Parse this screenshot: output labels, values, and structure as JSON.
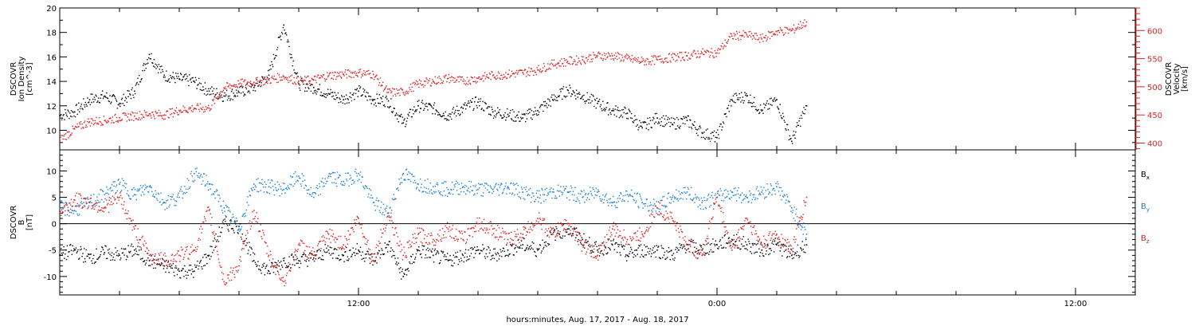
{
  "chart_data": [
    {
      "type": "scatter",
      "panel": "plasma",
      "x_range_hours": [
        2,
        38
      ],
      "xticks_major": [
        12,
        24,
        36
      ],
      "xtick_labels": [
        "12:00",
        "0:00",
        "12:00"
      ],
      "xlabel": "hours:minutes, Aug. 17, 2017 - Aug. 18, 2017",
      "y_left": {
        "label": [
          "DSCOVR",
          "Ion Density",
          "[cm^-3]"
        ],
        "range": [
          8.4,
          20
        ],
        "ticks": [
          10,
          12,
          14,
          16,
          18,
          20
        ]
      },
      "y_right": {
        "label": [
          "DSCOVR",
          "Velocity",
          "[km/s]"
        ],
        "range": [
          388,
          640
        ],
        "ticks": [
          400,
          450,
          500,
          550,
          600
        ]
      },
      "series": [
        {
          "name": "",
          "axis": "left",
          "color": "#000000",
          "x": [
            2,
            2.5,
            3,
            3.5,
            4,
            4.5,
            5,
            5.5,
            6,
            6.5,
            7,
            7.5,
            8,
            8.5,
            9,
            9.5,
            10,
            10.5,
            11,
            11.5,
            12,
            12.5,
            13,
            13.5,
            14,
            14.5,
            15,
            15.5,
            16,
            16.5,
            17,
            17.5,
            18,
            18.5,
            19,
            19.5,
            20,
            20.5,
            21,
            21.5,
            22,
            22.5,
            23,
            23.5,
            24,
            24.5,
            25,
            25.5,
            26,
            26.5,
            27
          ],
          "y": [
            11.2,
            11.5,
            12.5,
            12.8,
            12.2,
            13.2,
            16.2,
            14.5,
            14.2,
            14,
            13.2,
            12.8,
            13.1,
            13.5,
            14.5,
            18.6,
            13.8,
            13.5,
            13,
            12.5,
            13.2,
            12.5,
            12.4,
            10.6,
            12,
            11.8,
            11.2,
            11.8,
            12.3,
            11.5,
            11.3,
            11,
            11.6,
            12.5,
            13.3,
            12.8,
            12.2,
            11.6,
            11.4,
            10.2,
            11,
            10.5,
            10.8,
            9.8,
            9.4,
            12.5,
            12.8,
            11.6,
            12.5,
            9.1,
            12
          ]
        },
        {
          "name": "",
          "axis": "right",
          "color": "#dd2222",
          "x": [
            2,
            2.5,
            3,
            3.5,
            4,
            4.5,
            5,
            5.5,
            6,
            6.5,
            7,
            7.5,
            8,
            8.5,
            9,
            9.5,
            10,
            10.5,
            11,
            11.5,
            12,
            12.5,
            13,
            13.5,
            14,
            14.5,
            15,
            15.5,
            16,
            16.5,
            17,
            17.5,
            18,
            18.5,
            19,
            19.5,
            20,
            20.5,
            21,
            21.5,
            22,
            22.5,
            23,
            23.5,
            24,
            24.5,
            25,
            25.5,
            26,
            26.5,
            27
          ],
          "y": [
            405,
            425,
            438,
            440,
            445,
            448,
            452,
            450,
            458,
            462,
            462,
            498,
            505,
            508,
            512,
            518,
            510,
            512,
            520,
            522,
            525,
            522,
            490,
            490,
            505,
            510,
            515,
            510,
            515,
            520,
            522,
            525,
            530,
            540,
            545,
            548,
            555,
            555,
            550,
            545,
            548,
            552,
            555,
            560,
            560,
            590,
            592,
            585,
            598,
            600,
            615
          ]
        }
      ]
    },
    {
      "type": "scatter",
      "panel": "magnetic-field",
      "x_range_hours": [
        2,
        38
      ],
      "y_left": {
        "label": [
          "DSCOVR",
          "B",
          "[nT]"
        ],
        "range": [
          -13.5,
          14
        ],
        "ticks": [
          -10,
          -5,
          0,
          5,
          10
        ]
      },
      "zero_line": true,
      "series": [
        {
          "name": "Bx",
          "color": "#000000",
          "x": [
            2,
            2.5,
            3,
            3.5,
            4,
            4.5,
            5,
            5.5,
            6,
            6.5,
            7,
            7.5,
            8,
            8.5,
            9,
            9.5,
            10,
            10.5,
            11,
            11.5,
            12,
            12.5,
            13,
            13.5,
            14,
            14.5,
            15,
            15.5,
            16,
            16.5,
            17,
            17.5,
            18,
            18.5,
            19,
            19.5,
            20,
            20.5,
            21,
            21.5,
            22,
            22.5,
            23,
            23.5,
            24,
            24.5,
            25,
            25.5,
            26,
            26.5,
            27
          ],
          "y": [
            -6,
            -5,
            -6.5,
            -5.5,
            -6,
            -5,
            -7,
            -8,
            -9,
            -9,
            -6,
            0,
            -0.5,
            -7,
            -9,
            -7,
            -7,
            -6.5,
            -5,
            -6,
            -5,
            -7,
            -4,
            -10,
            -5,
            -6,
            -7,
            -6,
            -5,
            -6,
            -5,
            -4,
            -5,
            -2,
            -1,
            -3,
            -5,
            -4,
            -6,
            -5,
            -5,
            -6,
            -4,
            -5,
            -4,
            -3,
            -4,
            -5,
            -4,
            -6,
            -4
          ]
        },
        {
          "name": "By",
          "color": "#1a7fd6",
          "x": [
            2,
            2.5,
            3,
            3.5,
            4,
            4.5,
            5,
            5.5,
            6,
            6.5,
            7,
            7.5,
            8,
            8.5,
            9,
            9.5,
            10,
            10.5,
            11,
            11.5,
            12,
            12.5,
            13,
            13.5,
            14,
            14.5,
            15,
            15.5,
            16,
            16.5,
            17,
            17.5,
            18,
            18.5,
            19,
            19.5,
            20,
            20.5,
            21,
            21.5,
            22,
            22.5,
            23,
            23.5,
            24,
            24.5,
            25,
            25.5,
            26,
            26.5,
            27
          ],
          "y": [
            3,
            2.5,
            4,
            5.5,
            7.5,
            5.5,
            7,
            4,
            5,
            9.5,
            7.5,
            3,
            -1,
            7.5,
            7,
            6.5,
            9,
            5,
            9,
            8,
            9.5,
            4,
            2,
            9.5,
            7.5,
            7,
            6.5,
            7,
            6.5,
            6.5,
            7,
            6,
            5,
            6,
            6,
            5,
            6,
            4,
            5.5,
            4,
            3,
            5,
            6,
            4,
            5,
            6,
            5,
            6,
            7,
            3,
            -2
          ]
        },
        {
          "name": "Bz",
          "color": "#dd2222",
          "x": [
            2,
            2.5,
            3,
            3.5,
            4,
            4.5,
            5,
            5.5,
            6,
            6.5,
            7,
            7.5,
            8,
            8.5,
            9,
            9.5,
            10,
            10.5,
            11,
            11.5,
            12,
            12.5,
            13,
            13.5,
            14,
            14.5,
            15,
            15.5,
            16,
            16.5,
            17,
            17.5,
            18,
            18.5,
            19,
            19.5,
            20,
            20.5,
            21,
            21.5,
            22,
            22.5,
            23,
            23.5,
            24,
            24.5,
            25,
            25.5,
            26,
            26.5,
            27
          ],
          "y": [
            2,
            4.5,
            4,
            3,
            5,
            -1,
            -6,
            -7,
            -6,
            -5,
            2.5,
            -11,
            -8,
            2.5,
            -6,
            -11,
            -4,
            -6,
            -2,
            -4,
            1,
            -7,
            2,
            -6,
            -2,
            -3,
            -1,
            -3,
            0,
            -1,
            -3,
            -2,
            1,
            -2,
            0,
            -4,
            -6,
            -1,
            -3,
            -2,
            3,
            1,
            -4,
            -6,
            5,
            -5,
            1,
            -4,
            -2,
            -5,
            5
          ]
        }
      ],
      "legend": {
        "placement": "right",
        "labels": [
          "Bx",
          "By",
          "Bz"
        ],
        "subscripts": [
          "x",
          "y",
          "z"
        ]
      }
    }
  ]
}
